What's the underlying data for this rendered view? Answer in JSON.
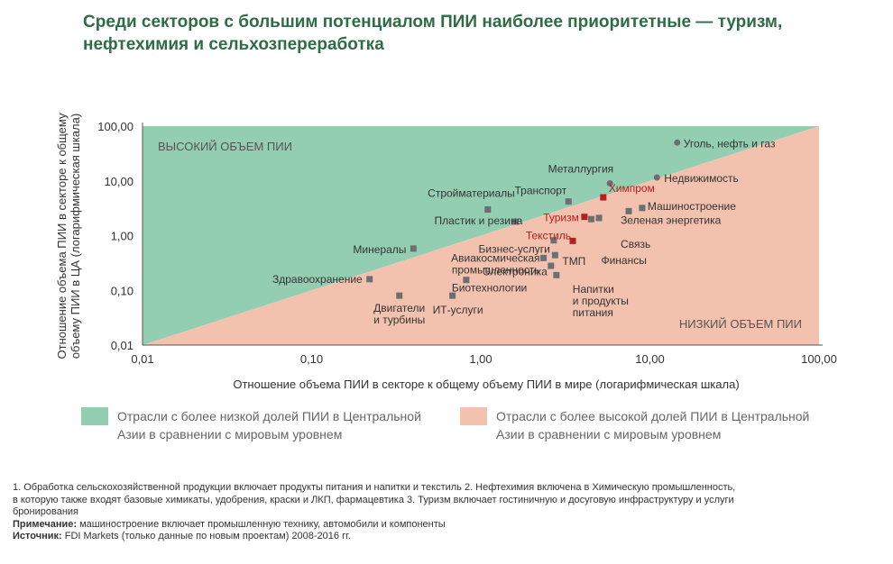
{
  "title": "Среди секторов с большим потенциалом ПИИ наиболее приоритетные — туризм, нефтехимия и сельхозпереработка",
  "chart_data": {
    "type": "scatter",
    "xscale": "log",
    "yscale": "log",
    "xlim": [
      0.01,
      100
    ],
    "ylim": [
      0.01,
      100
    ],
    "xticks": [
      "0,01",
      "0,10",
      "1,00",
      "10,00",
      "100,00"
    ],
    "yticks": [
      "0,01",
      "0,10",
      "1,00",
      "10,00",
      "100,00"
    ],
    "xlabel": "Отношение объема ПИИ в секторе к общему объему ПИИ в мире (логарифмическая шкала)",
    "ylabel_lines": [
      "Отношение объема ПИИ в секторе к общему",
      "объему ПИИ в ЦА (логарифмическая шкала)"
    ],
    "region_high_label": "ВЫСОКИЙ ОБЪЕМ ПИИ",
    "region_low_label": "НИЗКИЙ ОБЪЕМ ПИИ",
    "colors": {
      "high_region": "#93cdb2",
      "low_region": "#f3c2ae",
      "point": "#6d6e71",
      "highlight": "#b3211f",
      "label": "#333333"
    },
    "points": [
      {
        "name": "Уголь, нефть и газ",
        "x": 14.5,
        "y": 50,
        "marker": "circle",
        "highlight": false
      },
      {
        "name": "Металлургия",
        "x": 5.8,
        "y": 9.0,
        "marker": "circle",
        "highlight": false
      },
      {
        "name": "Недвижимость",
        "x": 11.0,
        "y": 11.5,
        "marker": "circle",
        "highlight": false
      },
      {
        "name": "Химпром",
        "x": 5.3,
        "y": 5.0,
        "marker": "square",
        "highlight": true
      },
      {
        "name": "Транспорт",
        "x": 3.3,
        "y": 4.2,
        "marker": "square",
        "highlight": false
      },
      {
        "name": "Стройматериалы",
        "x": 1.1,
        "y": 3.0,
        "marker": "square",
        "highlight": false
      },
      {
        "name": "Машиностроение",
        "x": 9.0,
        "y": 3.2,
        "marker": "square",
        "highlight": false
      },
      {
        "name": "Зеленая энергетика",
        "x": 7.5,
        "y": 2.8,
        "marker": "square",
        "highlight": false
      },
      {
        "name": "Пластик и резина",
        "x": 1.6,
        "y": 1.8,
        "marker": "square",
        "highlight": false
      },
      {
        "name": "Туризм",
        "x": 4.1,
        "y": 2.2,
        "marker": "square",
        "highlight": true
      },
      {
        "name": "Связь",
        "x": 5.0,
        "y": 2.1,
        "marker": "square",
        "highlight": false
      },
      {
        "name": "Финансы",
        "x": 4.5,
        "y": 2.0,
        "marker": "square",
        "highlight": false
      },
      {
        "name": "Текстиль",
        "x": 3.5,
        "y": 0.8,
        "marker": "square",
        "highlight": true
      },
      {
        "name": "Бизнес-услуги",
        "x": 2.7,
        "y": 0.82,
        "marker": "square",
        "highlight": false
      },
      {
        "name": "Минералы",
        "x": 0.4,
        "y": 0.58,
        "marker": "square",
        "highlight": false
      },
      {
        "name": "ТМП",
        "x": 2.75,
        "y": 0.44,
        "marker": "square",
        "highlight": false
      },
      {
        "name": "Авиакосмическая промышленность",
        "x": 2.35,
        "y": 0.39,
        "marker": "square",
        "highlight": false
      },
      {
        "name": "Напитки и продукты питания",
        "x": 2.6,
        "y": 0.28,
        "marker": "square",
        "highlight": false
      },
      {
        "name": "Электроника",
        "x": 2.8,
        "y": 0.19,
        "marker": "square",
        "highlight": false
      },
      {
        "name": "Здравоохранение",
        "x": 0.22,
        "y": 0.16,
        "marker": "square",
        "highlight": false
      },
      {
        "name": "Биотехнологии",
        "x": 0.82,
        "y": 0.155,
        "marker": "square",
        "highlight": false
      },
      {
        "name": "Двигатели и турбины",
        "x": 0.33,
        "y": 0.08,
        "marker": "square",
        "highlight": false
      },
      {
        "name": "ИТ-услуги",
        "x": 0.68,
        "y": 0.08,
        "marker": "square",
        "highlight": false
      }
    ]
  },
  "legend": [
    {
      "label": "Отрасли с более низкой долей ПИИ в Центральной Азии в сравнении с мировым уровнем",
      "color": "#93cdb2"
    },
    {
      "label": "Отрасли с более высокой долей ПИИ в Центральной Азии в сравнении с мировым уровнем",
      "color": "#f3c2ae"
    }
  ],
  "notes": {
    "footnotes_1": "1. Обработка сельскохозяйственной продукции включает продукты питания и напитки и текстиль 2.  Нефтехимия включена в Химическую промышленность,",
    "footnotes_2": "в которую также входят базовые химикаты, удобрения, краски и ЛКП, фармацевтика 3. Туризм включает гостиничную и досуговую инфраструктуру и услуги",
    "footnotes_3": "бронирования",
    "remark_label": "Примечание:",
    "remark_text": " машиностроение включает промышленную технику, автомобили и компоненты",
    "source_label": "Источник:",
    "source_text": " FDI Markets (только данные по новым проектам) 2008-2016 гг."
  }
}
